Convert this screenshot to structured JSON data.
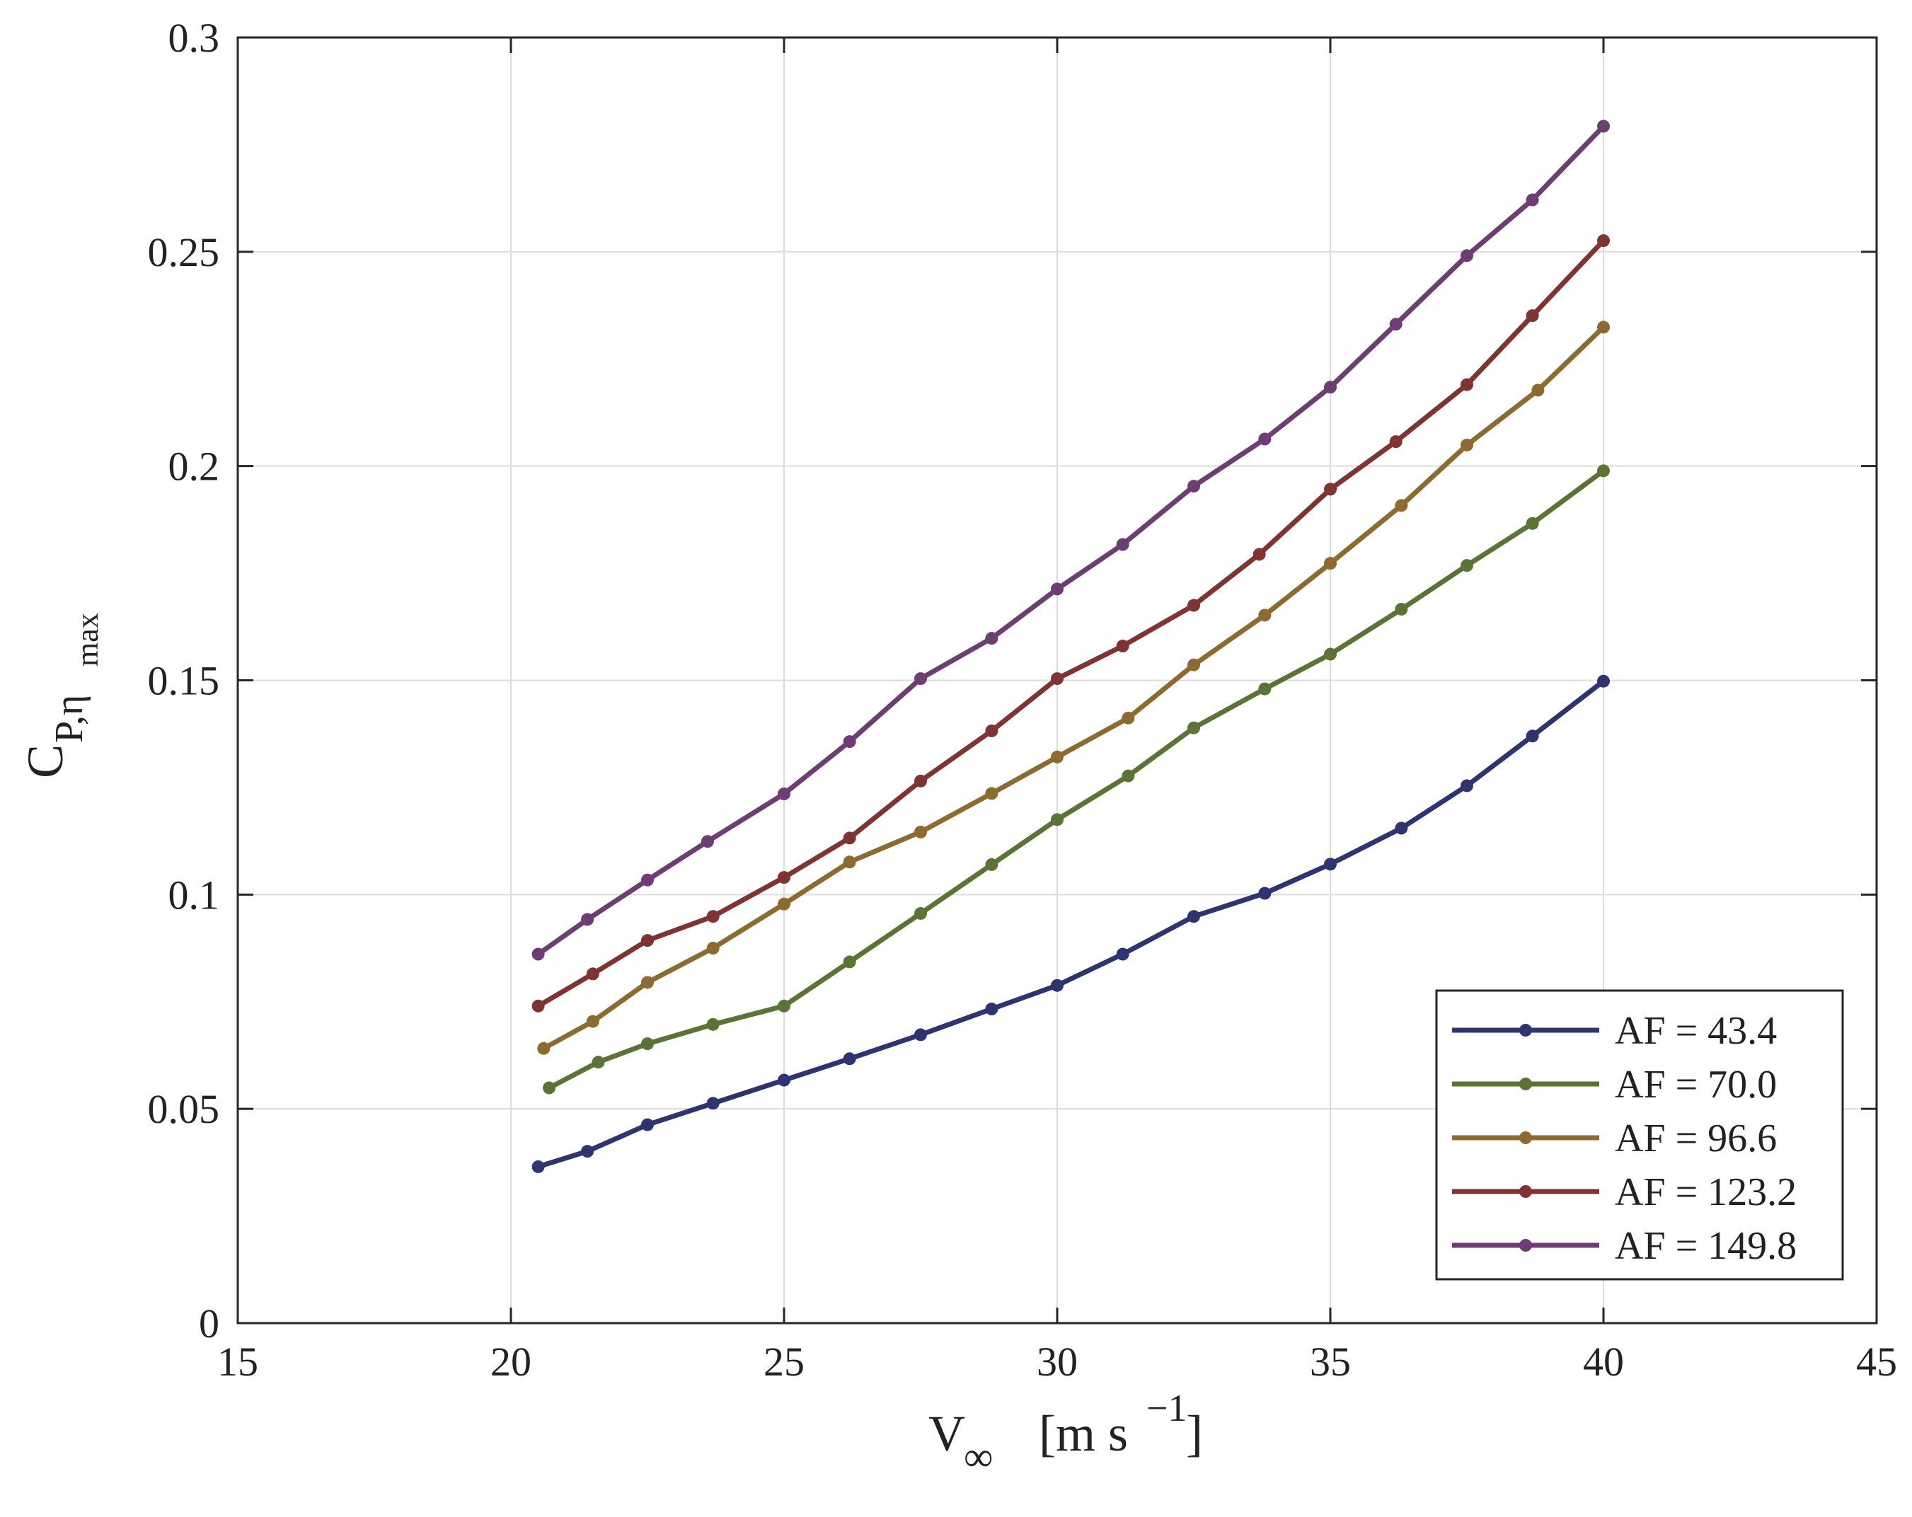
{
  "chart_data": {
    "type": "line",
    "title": "",
    "xlabel": {
      "main": "V",
      "sub": "∞",
      "unit_open": "[m s",
      "unit_sup": "−1",
      "unit_close": "]"
    },
    "ylabel": {
      "main": "C",
      "sub": "P,η",
      "subsub": "max"
    },
    "xlim": [
      15,
      45
    ],
    "ylim": [
      0,
      0.3
    ],
    "xticks": [
      15,
      20,
      25,
      30,
      35,
      40,
      45
    ],
    "xtick_labels": [
      "15",
      "20",
      "25",
      "30",
      "35",
      "40",
      "45"
    ],
    "yticks": [
      0,
      0.05,
      0.1,
      0.15,
      0.2,
      0.25,
      0.3
    ],
    "ytick_labels": [
      "0",
      "0.05",
      "0.1",
      "0.15",
      "0.2",
      "0.25",
      "0.3"
    ],
    "grid": true,
    "legend_position": "bottom-right",
    "series": [
      {
        "name": "AF = 43.4",
        "color": "#2e3470",
        "x": [
          20.5,
          21.4,
          22.5,
          23.7,
          25.0,
          26.2,
          27.5,
          28.8,
          30.0,
          31.2,
          32.5,
          33.8,
          35.0,
          36.3,
          37.5,
          38.7,
          40.0
        ],
        "y": [
          0.0365,
          0.0401,
          0.0463,
          0.0513,
          0.0567,
          0.0617,
          0.0673,
          0.0733,
          0.0788,
          0.0861,
          0.0949,
          0.1003,
          0.1071,
          0.1155,
          0.1254,
          0.137,
          0.1498
        ]
      },
      {
        "name": "AF = 70.0",
        "color": "#5b7436",
        "x": [
          20.7,
          21.6,
          22.5,
          23.7,
          25.0,
          26.2,
          27.5,
          28.8,
          30.0,
          31.3,
          32.5,
          33.8,
          35.0,
          36.3,
          37.5,
          38.7,
          40.0
        ],
        "y": [
          0.0549,
          0.0609,
          0.0652,
          0.0697,
          0.074,
          0.0843,
          0.0956,
          0.107,
          0.1175,
          0.1277,
          0.1389,
          0.148,
          0.1561,
          0.1666,
          0.1768,
          0.1866,
          0.1989
        ]
      },
      {
        "name": "AF = 96.6",
        "color": "#8d6a30",
        "x": [
          20.6,
          21.5,
          22.5,
          23.7,
          25.0,
          26.2,
          27.5,
          28.8,
          30.0,
          31.3,
          32.5,
          33.8,
          35.0,
          36.3,
          37.5,
          38.8,
          40.0
        ],
        "y": [
          0.0641,
          0.0704,
          0.0795,
          0.0875,
          0.0978,
          0.1076,
          0.1146,
          0.1236,
          0.1321,
          0.1412,
          0.1536,
          0.1652,
          0.1773,
          0.1908,
          0.2049,
          0.2177,
          0.2324
        ]
      },
      {
        "name": "AF = 123.2",
        "color": "#7f3432",
        "x": [
          20.5,
          21.5,
          22.5,
          23.7,
          25.0,
          26.2,
          27.5,
          28.8,
          30.0,
          31.2,
          32.5,
          33.7,
          35.0,
          36.2,
          37.5,
          38.7,
          40.0
        ],
        "y": [
          0.074,
          0.0815,
          0.0893,
          0.0949,
          0.104,
          0.1132,
          0.1265,
          0.1382,
          0.1504,
          0.158,
          0.1675,
          0.1794,
          0.1946,
          0.2057,
          0.219,
          0.2351,
          0.2526
        ]
      },
      {
        "name": "AF = 149.8",
        "color": "#6e3d74",
        "x": [
          20.5,
          21.4,
          22.5,
          23.6,
          25.0,
          26.2,
          27.5,
          28.8,
          30.0,
          31.2,
          32.5,
          33.8,
          35.0,
          36.2,
          37.5,
          38.7,
          40.0
        ],
        "y": [
          0.0861,
          0.0942,
          0.1034,
          0.1124,
          0.1235,
          0.1357,
          0.1504,
          0.1598,
          0.1713,
          0.1817,
          0.1953,
          0.2063,
          0.2184,
          0.2331,
          0.2491,
          0.2621,
          0.2793
        ]
      }
    ]
  }
}
